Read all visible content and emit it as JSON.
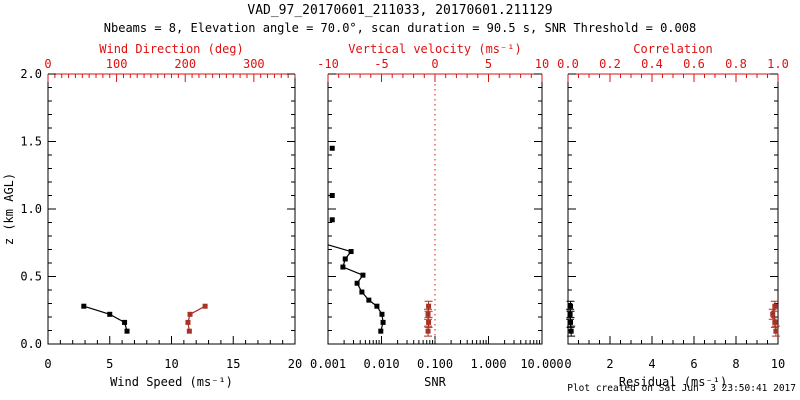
{
  "header": {
    "title": "VAD_97_20170601_211033, 20170601.211129",
    "subtitle": "Nbeams = 8, Elevation angle = 70.0°, scan duration = 90.5 s, SNR Threshold = 0.008"
  },
  "footer": {
    "created": "Plot created on Sat Jun  3 23:50:41 2017"
  },
  "colors": {
    "black": "#000000",
    "axis_red": "#dd1111",
    "data_red": "#a93226"
  },
  "chart_data": [
    {
      "type": "line",
      "xlabel": "Wind Speed (ms⁻¹)",
      "xscale": "linear",
      "xlim": [
        0,
        20
      ],
      "xtick_vals": [
        0,
        5,
        10,
        15,
        20
      ],
      "xtick_labels": [
        "0",
        "5",
        "10",
        "15",
        "20"
      ],
      "xminor": 1,
      "ylabel": "z (km AGL)",
      "ylim": [
        0,
        2
      ],
      "ytick_vals": [
        0,
        0.5,
        1.0,
        1.5,
        2.0
      ],
      "ytick_labels": [
        "0.0",
        "0.5",
        "1.0",
        "1.5",
        "2.0"
      ],
      "yminor": 0.1,
      "show_ytick_labels": true,
      "top_axis": {
        "label": "Wind Direction (deg)",
        "xlim": [
          0,
          360
        ],
        "tick_vals": [
          0,
          100,
          200,
          300
        ],
        "tick_labels": [
          "0",
          "100",
          "200",
          "300"
        ],
        "minor": 10
      },
      "series": [
        {
          "name": "wind-speed",
          "color": "black",
          "axis": "bottom",
          "marker": "square",
          "line": true,
          "points": [
            [
              2.9,
              0.28
            ],
            [
              5.0,
              0.22
            ],
            [
              6.2,
              0.16
            ],
            [
              6.4,
              0.095
            ]
          ]
        },
        {
          "name": "wind-direction",
          "color": "red",
          "axis": "top",
          "marker": "square",
          "line": true,
          "points": [
            [
              229,
              0.28
            ],
            [
              207,
              0.22
            ],
            [
              204,
              0.16
            ],
            [
              206,
              0.095
            ]
          ]
        }
      ]
    },
    {
      "type": "line",
      "xlabel": "SNR",
      "xscale": "log",
      "xlim": [
        0.001,
        10
      ],
      "xtick_vals": [
        0.001,
        0.01,
        0.1,
        1,
        10
      ],
      "xtick_labels": [
        "0.001",
        "0.010",
        "0.100",
        "1.000",
        "10.000"
      ],
      "ylim": [
        0,
        2
      ],
      "ytick_vals": [
        0,
        0.5,
        1.0,
        1.5,
        2.0
      ],
      "ytick_labels": [
        "0.0",
        "0.5",
        "1.0",
        "1.5",
        "2.0"
      ],
      "yminor": 0.1,
      "show_ytick_labels": false,
      "top_axis": {
        "label": "Vertical velocity (ms⁻¹)",
        "xlim": [
          -10,
          10
        ],
        "tick_vals": [
          -10,
          -5,
          0,
          5,
          10
        ],
        "tick_labels": [
          "-10",
          "-5",
          "0",
          "5",
          "10"
        ],
        "minor": 1
      },
      "refline": {
        "axis": "top",
        "x": 0,
        "style": "dotted",
        "color": "red"
      },
      "series": [
        {
          "name": "snr-below-scale",
          "color": "black",
          "axis": "bottom",
          "marker": "square",
          "line": false,
          "points": [
            [
              0.0012,
              1.45
            ],
            [
              0.0012,
              1.1
            ],
            [
              0.0012,
              0.92
            ]
          ]
        },
        {
          "name": "snr-profile",
          "color": "black",
          "axis": "bottom",
          "marker": "square",
          "line": true,
          "line_prefix": [
            [
              0.001,
              0.735
            ]
          ],
          "points": [
            [
              0.0027,
              0.685
            ],
            [
              0.0021,
              0.63
            ],
            [
              0.0019,
              0.57
            ],
            [
              0.0045,
              0.51
            ],
            [
              0.0035,
              0.45
            ],
            [
              0.0043,
              0.385
            ],
            [
              0.0058,
              0.325
            ],
            [
              0.0082,
              0.28
            ],
            [
              0.0102,
              0.22
            ],
            [
              0.0107,
              0.16
            ],
            [
              0.0097,
              0.095
            ]
          ]
        },
        {
          "name": "vertical-velocity",
          "color": "red",
          "axis": "top",
          "marker": "square",
          "line": true,
          "caps": true,
          "points": [
            [
              -0.6,
              0.28
            ],
            [
              -0.65,
              0.22
            ],
            [
              -0.6,
              0.16
            ],
            [
              -0.65,
              0.095
            ]
          ]
        }
      ]
    },
    {
      "type": "line",
      "xlabel": "Residual (ms⁻¹)",
      "xscale": "linear",
      "xlim": [
        0,
        10
      ],
      "xtick_vals": [
        0,
        2,
        4,
        6,
        8,
        10
      ],
      "xtick_labels": [
        "0",
        "2",
        "4",
        "6",
        "8",
        "10"
      ],
      "xminor": 0.5,
      "ylim": [
        0,
        2
      ],
      "ytick_vals": [
        0,
        0.5,
        1.0,
        1.5,
        2.0
      ],
      "ytick_labels": [
        "0.0",
        "0.5",
        "1.0",
        "1.5",
        "2.0"
      ],
      "yminor": 0.1,
      "show_ytick_labels": false,
      "top_axis": {
        "label": "Correlation",
        "xlim": [
          0,
          1
        ],
        "tick_vals": [
          0,
          0.2,
          0.4,
          0.6,
          0.8,
          1.0
        ],
        "tick_labels": [
          "0.0",
          "0.2",
          "0.4",
          "0.6",
          "0.8",
          "1.0"
        ],
        "minor": 0.05
      },
      "series": [
        {
          "name": "residual",
          "color": "black",
          "axis": "bottom",
          "marker": "square",
          "line": true,
          "caps": true,
          "points": [
            [
              0.12,
              0.28
            ],
            [
              0.1,
              0.22
            ],
            [
              0.12,
              0.16
            ],
            [
              0.15,
              0.095
            ]
          ]
        },
        {
          "name": "correlation",
          "color": "red",
          "axis": "top",
          "marker": "square",
          "line": true,
          "caps": true,
          "points": [
            [
              0.985,
              0.28
            ],
            [
              0.975,
              0.22
            ],
            [
              0.985,
              0.16
            ],
            [
              0.99,
              0.095
            ]
          ]
        }
      ]
    }
  ]
}
